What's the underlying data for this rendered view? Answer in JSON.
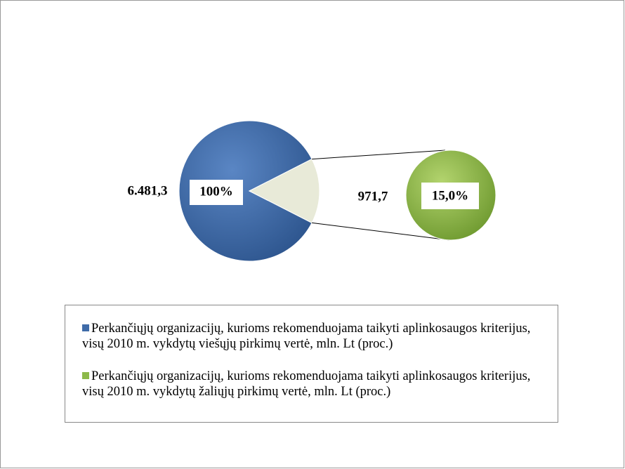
{
  "chart_data": {
    "type": "pie-of-pie",
    "categories": [
      "Perkančiųjų organizacijų, kurioms rekomenduojama taikyti aplinkosaugos kriterijus, visų 2010 m. vykdytų viešųjų pirkimų vertė, mln. Lt (proc.)",
      "Perkančiųjų organizacijų, kurioms rekomenduojama taikyti aplinkosaugos kriterijus, visų 2010 m. vykdytų žaliųjų  pirkimų vertė, mln. Lt (proc.)"
    ],
    "values": [
      6481.3,
      971.7
    ],
    "value_labels": [
      "6.481,3",
      "971,7"
    ],
    "percents": [
      100,
      15.0
    ],
    "percent_labels": [
      "100%",
      "15,0%"
    ],
    "colors": [
      "#3f6ba8",
      "#8db94a"
    ],
    "split_color": "#e8ead8"
  }
}
